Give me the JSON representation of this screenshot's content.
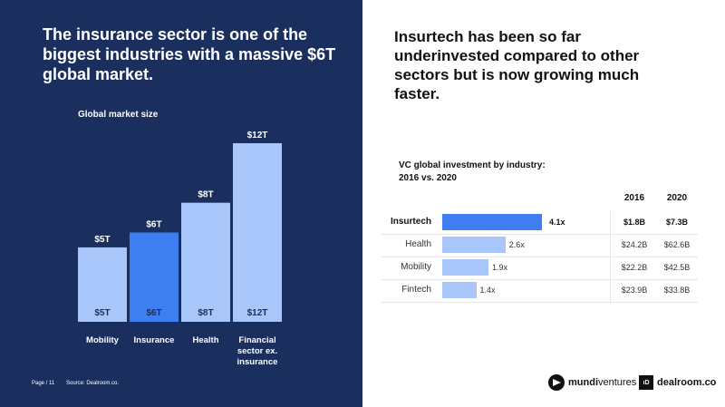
{
  "left": {
    "title": "The insurance sector is one of the biggest industries with a massive $6T global market.",
    "footer": {
      "page": "Page / 11",
      "source": "Source: Dealroom.co."
    }
  },
  "right": {
    "title": "Insurtech has been so far underinvested compared to other sectors but is now growing much faster."
  },
  "chart_data": [
    {
      "type": "bar",
      "title": "Global market size",
      "categories": [
        "Mobility",
        "Insurance",
        "Health",
        "Financial sector ex. insurance"
      ],
      "category_lines": [
        [
          "Mobility"
        ],
        [
          "Insurance"
        ],
        [
          "Health"
        ],
        [
          "Financial",
          "sector ex.",
          "insurance"
        ]
      ],
      "values": [
        5,
        6,
        8,
        12
      ],
      "top_labels": [
        "$5T",
        "$6T",
        "$8T",
        "$12T"
      ],
      "inner_labels": [
        "$5T",
        "$6T",
        "$8T",
        "$12T"
      ],
      "highlight_index": 1,
      "colors": {
        "default": "#a8c6fa",
        "highlight": "#3d7ff0",
        "text": "#ffffff"
      },
      "ylim": [
        0,
        12
      ]
    },
    {
      "type": "bar",
      "orientation": "horizontal",
      "title": "VC global investment by industry:",
      "subtitle": "2016 vs. 2020",
      "columns": [
        "2016",
        "2020"
      ],
      "categories": [
        "Insurtech",
        "Health",
        "Mobility",
        "Fintech"
      ],
      "values": [
        4.1,
        2.6,
        1.9,
        1.4
      ],
      "value_labels": [
        "4.1x",
        "2.6x",
        "1.9x",
        "1.4x"
      ],
      "value_2016": [
        "$1.8B",
        "$24.2B",
        "$22.2B",
        "$23.9B"
      ],
      "value_2020": [
        "$7.3B",
        "$62.6B",
        "$42.5B",
        "$33.8B"
      ],
      "highlight_index": 0,
      "colors": {
        "default": "#a8c6fa",
        "highlight": "#3d7ff0"
      }
    }
  ],
  "logos": {
    "mundi": {
      "bold": "mundi",
      "rest": "ventures"
    },
    "dealroom": {
      "mark": "ıD",
      "word": "dealroom.co"
    }
  }
}
